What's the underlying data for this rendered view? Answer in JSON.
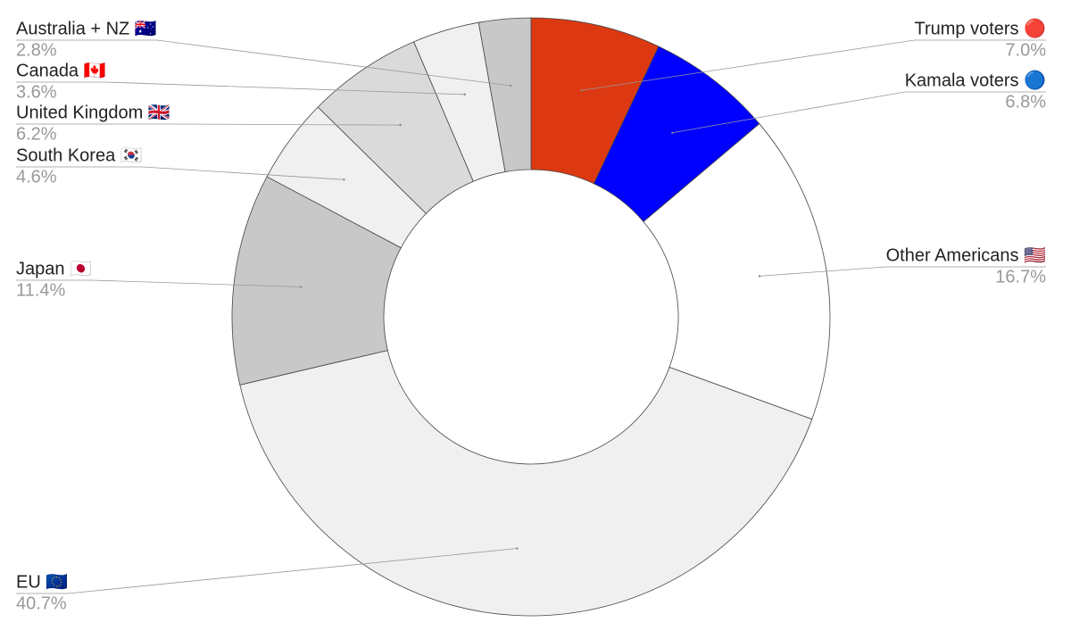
{
  "chart_data": {
    "type": "donut",
    "categories": [
      "Trump voters 🔴",
      "Kamala voters 🔵",
      "Other Americans 🇺🇸",
      "EU 🇪🇺",
      "Japan 🇯🇵",
      "South Korea 🇰🇷",
      "United Kingdom 🇬🇧",
      "Canada 🇨🇦",
      "Australia + NZ 🇦🇺"
    ],
    "values": [
      7.0,
      6.8,
      16.7,
      40.7,
      11.4,
      4.6,
      6.2,
      3.6,
      2.8
    ],
    "value_labels": [
      "7.0%",
      "6.8%",
      "16.7%",
      "40.7%",
      "11.4%",
      "4.6%",
      "6.2%",
      "3.6%",
      "2.8%"
    ],
    "colors": [
      "#dc3912",
      "#0000ff",
      "#ffffff",
      "#f0f0f0",
      "#c8c8c8",
      "#f0f0f0",
      "#dadada",
      "#f0f0f0",
      "#c8c8c8"
    ]
  }
}
